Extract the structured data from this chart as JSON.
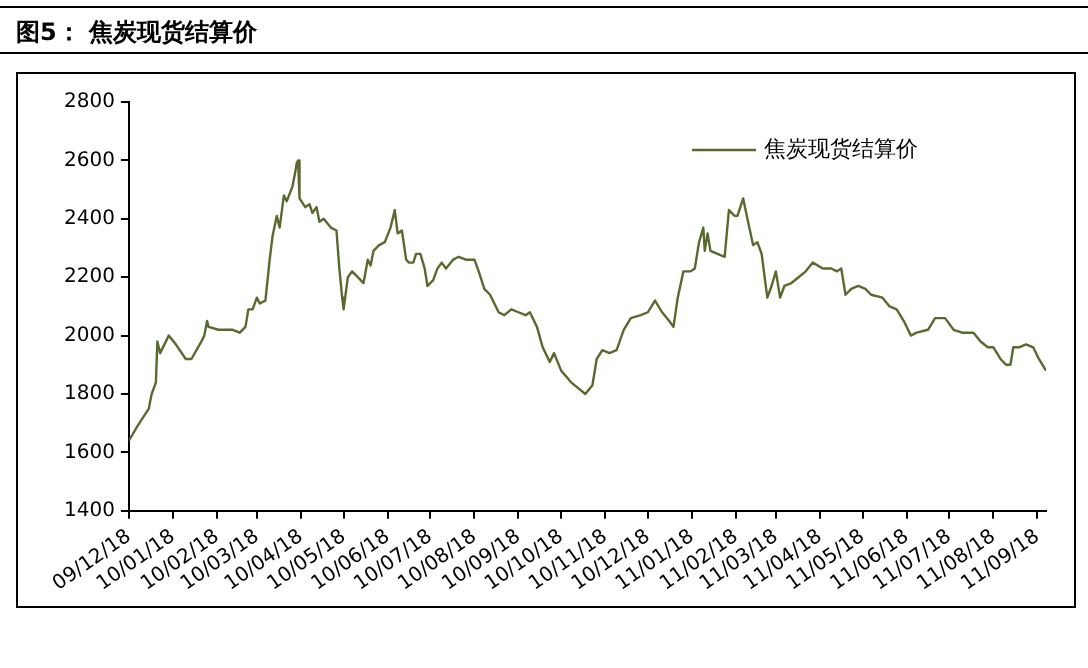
{
  "chart_data": {
    "type": "line",
    "title": "图5： 焦炭现货结算价",
    "x": [
      "2009-12-18",
      "2009-12-24",
      "2010-01-01",
      "2010-01-03",
      "2010-01-06",
      "2010-01-07",
      "2010-01-09",
      "2010-01-15",
      "2010-01-20",
      "2010-01-27",
      "2010-01-31",
      "2010-02-07",
      "2010-02-09",
      "2010-02-11",
      "2010-02-12",
      "2010-02-19",
      "2010-03-01",
      "2010-03-06",
      "2010-03-10",
      "2010-03-12",
      "2010-03-15",
      "2010-03-18",
      "2010-03-20",
      "2010-03-24",
      "2010-03-27",
      "2010-03-29",
      "2010-04-01",
      "2010-04-03",
      "2010-04-06",
      "2010-04-08",
      "2010-04-12",
      "2010-04-14",
      "2010-04-15",
      "2010-04-16",
      "2010-04-17",
      "2010-04-21",
      "2010-04-24",
      "2010-04-26",
      "2010-04-29",
      "2010-05-01",
      "2010-05-04",
      "2010-05-09",
      "2010-05-13",
      "2010-05-15",
      "2010-05-17",
      "2010-05-18",
      "2010-05-21",
      "2010-05-24",
      "2010-05-28",
      "2010-06-01",
      "2010-06-04",
      "2010-06-06",
      "2010-06-08",
      "2010-06-12",
      "2010-06-16",
      "2010-06-20",
      "2010-06-22",
      "2010-06-23",
      "2010-06-25",
      "2010-06-28",
      "2010-07-01",
      "2010-07-03",
      "2010-07-06",
      "2010-07-08",
      "2010-07-11",
      "2010-07-14",
      "2010-07-16",
      "2010-07-20",
      "2010-07-23",
      "2010-07-26",
      "2010-07-29",
      "2010-08-03",
      "2010-08-07",
      "2010-08-12",
      "2010-08-18",
      "2010-08-21",
      "2010-08-25",
      "2010-08-29",
      "2010-09-01",
      "2010-09-04",
      "2010-09-08",
      "2010-09-13",
      "2010-09-18",
      "2010-09-23",
      "2010-09-26",
      "2010-10-01",
      "2010-10-05",
      "2010-10-10",
      "2010-10-13",
      "2010-10-18",
      "2010-10-25",
      "2010-10-30",
      "2010-11-04",
      "2010-11-09",
      "2010-11-12",
      "2010-11-16",
      "2010-11-21",
      "2010-11-26",
      "2010-12-01",
      "2010-12-06",
      "2010-12-13",
      "2010-12-18",
      "2010-12-23",
      "2010-12-28",
      "2011-01-02",
      "2011-01-05",
      "2011-01-08",
      "2011-01-12",
      "2011-01-17",
      "2011-01-20",
      "2011-01-23",
      "2011-01-26",
      "2011-01-27",
      "2011-01-29",
      "2011-01-31",
      "2011-02-05",
      "2011-02-10",
      "2011-02-13",
      "2011-02-17",
      "2011-02-19",
      "2011-02-23",
      "2011-02-26",
      "2011-03-02",
      "2011-03-05",
      "2011-03-08",
      "2011-03-12",
      "2011-03-15",
      "2011-03-18",
      "2011-03-21",
      "2011-03-24",
      "2011-03-29",
      "2011-04-03",
      "2011-04-08",
      "2011-04-13",
      "2011-04-20",
      "2011-04-26",
      "2011-04-30",
      "2011-05-03",
      "2011-05-06",
      "2011-05-10",
      "2011-05-15",
      "2011-05-20",
      "2011-05-24",
      "2011-06-01",
      "2011-06-06",
      "2011-06-11",
      "2011-06-16",
      "2011-06-21",
      "2011-06-25",
      "2011-07-03",
      "2011-07-08",
      "2011-07-15",
      "2011-07-21",
      "2011-07-27",
      "2011-08-04",
      "2011-08-09",
      "2011-08-14",
      "2011-08-18",
      "2011-08-23",
      "2011-08-27",
      "2011-08-30",
      "2011-09-01",
      "2011-09-05",
      "2011-09-10",
      "2011-09-15",
      "2011-09-19",
      "2011-09-24"
    ],
    "series": [
      {
        "name": "焦炭现货结算价",
        "color": "#5a6a2e",
        "values": [
          1640,
          1690,
          1750,
          1800,
          1840,
          1980,
          1940,
          2000,
          1970,
          1920,
          1920,
          1980,
          2000,
          2050,
          2030,
          2020,
          2020,
          2010,
          2030,
          2090,
          2090,
          2130,
          2110,
          2120,
          2260,
          2340,
          2410,
          2370,
          2480,
          2460,
          2510,
          2560,
          2590,
          2600,
          2470,
          2440,
          2450,
          2420,
          2440,
          2390,
          2400,
          2370,
          2360,
          2230,
          2130,
          2090,
          2200,
          2220,
          2200,
          2180,
          2260,
          2240,
          2290,
          2310,
          2320,
          2370,
          2410,
          2430,
          2350,
          2360,
          2260,
          2250,
          2250,
          2280,
          2280,
          2230,
          2170,
          2190,
          2230,
          2250,
          2230,
          2260,
          2270,
          2260,
          2260,
          2220,
          2160,
          2140,
          2110,
          2080,
          2070,
          2090,
          2080,
          2070,
          2080,
          2030,
          1960,
          1910,
          1940,
          1880,
          1840,
          1820,
          1800,
          1830,
          1920,
          1950,
          1940,
          1950,
          2020,
          2060,
          2070,
          2080,
          2120,
          2080,
          2050,
          2030,
          2130,
          2220,
          2220,
          2230,
          2320,
          2370,
          2290,
          2350,
          2290,
          2280,
          2270,
          2430,
          2410,
          2410,
          2470,
          2400,
          2310,
          2320,
          2280,
          2130,
          2170,
          2220,
          2130,
          2170,
          2180,
          2200,
          2220,
          2250,
          2230,
          2230,
          2220,
          2230,
          2140,
          2160,
          2170,
          2160,
          2140,
          2130,
          2100,
          2090,
          2050,
          2000,
          2010,
          2020,
          2060,
          2060,
          2020,
          2010,
          2010,
          1980,
          1960,
          1960,
          1920,
          1900,
          1900,
          1960,
          1960,
          1970,
          1960,
          1920,
          1880
        ]
      }
    ],
    "xlim": [
      "2009-12-18",
      "2011-09-24"
    ],
    "xticks": [
      {
        "value": "2009-12-18",
        "label": "09/12/18"
      },
      {
        "value": "2010-01-18",
        "label": "10/01/18"
      },
      {
        "value": "2010-02-18",
        "label": "10/02/18"
      },
      {
        "value": "2010-03-18",
        "label": "10/03/18"
      },
      {
        "value": "2010-04-18",
        "label": "10/04/18"
      },
      {
        "value": "2010-05-18",
        "label": "10/05/18"
      },
      {
        "value": "2010-06-18",
        "label": "10/06/18"
      },
      {
        "value": "2010-07-18",
        "label": "10/07/18"
      },
      {
        "value": "2010-08-18",
        "label": "10/08/18"
      },
      {
        "value": "2010-09-18",
        "label": "10/09/18"
      },
      {
        "value": "2010-10-18",
        "label": "10/10/18"
      },
      {
        "value": "2010-11-18",
        "label": "10/11/18"
      },
      {
        "value": "2010-12-18",
        "label": "10/12/18"
      },
      {
        "value": "2011-01-18",
        "label": "11/01/18"
      },
      {
        "value": "2011-02-18",
        "label": "11/02/18"
      },
      {
        "value": "2011-03-18",
        "label": "11/03/18"
      },
      {
        "value": "2011-04-18",
        "label": "11/04/18"
      },
      {
        "value": "2011-05-18",
        "label": "11/05/18"
      },
      {
        "value": "2011-06-18",
        "label": "11/06/18"
      },
      {
        "value": "2011-07-18",
        "label": "11/07/18"
      },
      {
        "value": "2011-08-18",
        "label": "11/08/18"
      },
      {
        "value": "2011-09-18",
        "label": "11/09/18"
      }
    ],
    "ylim": [
      1400,
      2800
    ],
    "yticks": [
      1400,
      1600,
      1800,
      2000,
      2200,
      2400,
      2600,
      2800
    ],
    "grid": false,
    "legend": "top right",
    "marker": "none",
    "line_style": "solid"
  }
}
